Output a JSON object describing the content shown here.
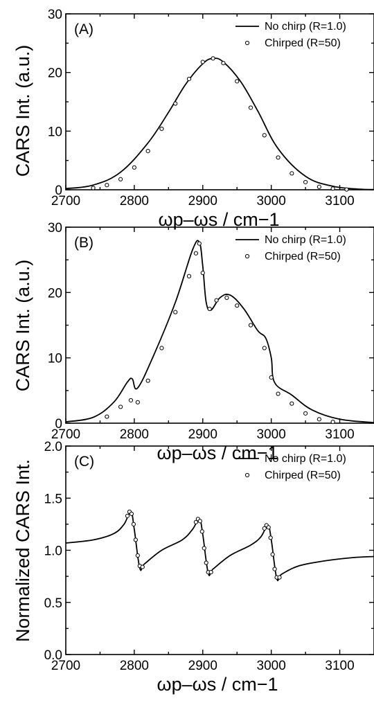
{
  "chart_data": [
    {
      "type": "line",
      "panel_label": "(A)",
      "xlabel": "ωp–ωs / cm−1",
      "ylabel": "CARS Int. (a.u.)",
      "xlim": [
        2700,
        3150
      ],
      "ylim": [
        0,
        30
      ],
      "xticks": [
        2700,
        2800,
        2900,
        3000,
        3100
      ],
      "yticks": [
        0,
        10,
        20,
        30
      ],
      "tick_labels_x": [
        "2700",
        "2800",
        "2900",
        "3000",
        "3100"
      ],
      "tick_labels_y": [
        "0",
        "10",
        "20",
        "30"
      ],
      "legend_position": "top-right",
      "series": [
        {
          "name": "No chirp (R=1.0)",
          "style": "line",
          "x": [
            2700,
            2740,
            2780,
            2820,
            2850,
            2875,
            2900,
            2915,
            2930,
            2955,
            2980,
            3010,
            3050,
            3090,
            3130,
            3150
          ],
          "y": [
            0.2,
            0.8,
            3.0,
            8.0,
            13.2,
            18.0,
            21.5,
            22.4,
            21.8,
            18.5,
            13.5,
            7.0,
            2.3,
            0.6,
            0.1,
            0.05
          ]
        },
        {
          "name": "Chirped  (R=50)",
          "style": "markers",
          "x": [
            2740,
            2760,
            2780,
            2800,
            2820,
            2840,
            2860,
            2880,
            2900,
            2915,
            2930,
            2950,
            2970,
            2990,
            3010,
            3030,
            3050,
            3070,
            3090,
            3110
          ],
          "y": [
            0.3,
            0.8,
            1.8,
            3.8,
            6.6,
            10.4,
            14.7,
            18.9,
            21.8,
            22.4,
            21.6,
            18.5,
            14.0,
            9.3,
            5.5,
            2.8,
            1.3,
            0.5,
            0.2,
            0.05
          ]
        }
      ]
    },
    {
      "type": "line",
      "panel_label": "(B)",
      "xlabel": "ωp–ωs / cm−1",
      "ylabel": "CARS Int. (a.u.)",
      "xlim": [
        2700,
        3150
      ],
      "ylim": [
        0,
        30
      ],
      "xticks": [
        2700,
        2800,
        2900,
        3000,
        3100
      ],
      "yticks": [
        0,
        10,
        20,
        30
      ],
      "tick_labels_x": [
        "2700",
        "2800",
        "2900",
        "3000",
        "3100"
      ],
      "tick_labels_y": [
        "0",
        "10",
        "20",
        "30"
      ],
      "legend_position": "top-right",
      "series": [
        {
          "name": "No chirp (R=1.0)",
          "style": "line",
          "x": [
            2700,
            2740,
            2770,
            2790,
            2797,
            2805,
            2830,
            2860,
            2885,
            2895,
            2900,
            2905,
            2912,
            2925,
            2940,
            2960,
            2980,
            2992,
            3000,
            3005,
            3030,
            3060,
            3100,
            3150
          ],
          "y": [
            0.2,
            0.9,
            3.2,
            6.3,
            6.8,
            5.4,
            10.8,
            18.5,
            26.5,
            27.7,
            24.0,
            18.5,
            17.3,
            19.2,
            19.6,
            17.5,
            14.2,
            13.0,
            10.0,
            6.2,
            4.3,
            2.0,
            0.6,
            0.1
          ]
        },
        {
          "name": "Chirped  (R=50)",
          "style": "markers",
          "x": [
            2760,
            2780,
            2795,
            2805,
            2820,
            2840,
            2860,
            2880,
            2890,
            2895,
            2900,
            2910,
            2920,
            2935,
            2950,
            2970,
            2990,
            3000,
            3010,
            3030,
            3050,
            3070,
            3090
          ],
          "y": [
            1.0,
            2.5,
            3.5,
            3.2,
            6.5,
            11.5,
            17.0,
            22.5,
            26.0,
            27.5,
            23.0,
            17.5,
            18.8,
            19.2,
            18.0,
            15.0,
            11.5,
            7.0,
            4.5,
            3.0,
            1.5,
            0.6,
            0.2
          ]
        }
      ]
    },
    {
      "type": "line",
      "panel_label": "(C)",
      "xlabel": "ωp–ωs / cm−1",
      "ylabel": "Normalized CARS Int.",
      "xlim": [
        2700,
        3150
      ],
      "ylim": [
        0,
        2
      ],
      "xticks": [
        2700,
        2800,
        2900,
        3000,
        3100
      ],
      "yticks": [
        0,
        0.5,
        1.0,
        1.5,
        2.0
      ],
      "tick_labels_x": [
        "2700",
        "2800",
        "2900",
        "3000",
        "3100"
      ],
      "tick_labels_y": [
        "0.0",
        "0.5",
        "1.0",
        "1.5",
        "2.0"
      ],
      "legend_position": "top-right",
      "series": [
        {
          "name": "No chirp (R=1.0)",
          "style": "line",
          "x": [
            2700,
            2740,
            2770,
            2785,
            2795,
            2800,
            2808,
            2815,
            2840,
            2870,
            2885,
            2895,
            2900,
            2908,
            2915,
            2940,
            2970,
            2985,
            2995,
            3000,
            3008,
            3015,
            3040,
            3080,
            3120,
            3150
          ],
          "y": [
            1.07,
            1.1,
            1.16,
            1.25,
            1.37,
            1.2,
            0.83,
            0.87,
            1.0,
            1.1,
            1.2,
            1.3,
            1.15,
            0.78,
            0.82,
            0.95,
            1.05,
            1.13,
            1.24,
            1.1,
            0.73,
            0.77,
            0.85,
            0.9,
            0.93,
            0.94
          ]
        },
        {
          "name": "Chirped  (R=50)",
          "style": "markers",
          "x": [
            2790,
            2793,
            2796,
            2799,
            2802,
            2805,
            2808,
            2812,
            2890,
            2893,
            2896,
            2899,
            2902,
            2905,
            2908,
            2912,
            2990,
            2993,
            2996,
            2999,
            3002,
            3005,
            3008,
            3012
          ],
          "y": [
            1.33,
            1.37,
            1.35,
            1.25,
            1.1,
            0.95,
            0.85,
            0.84,
            1.27,
            1.3,
            1.28,
            1.18,
            1.02,
            0.88,
            0.79,
            0.79,
            1.21,
            1.24,
            1.22,
            1.12,
            0.96,
            0.82,
            0.74,
            0.74
          ]
        }
      ]
    }
  ]
}
